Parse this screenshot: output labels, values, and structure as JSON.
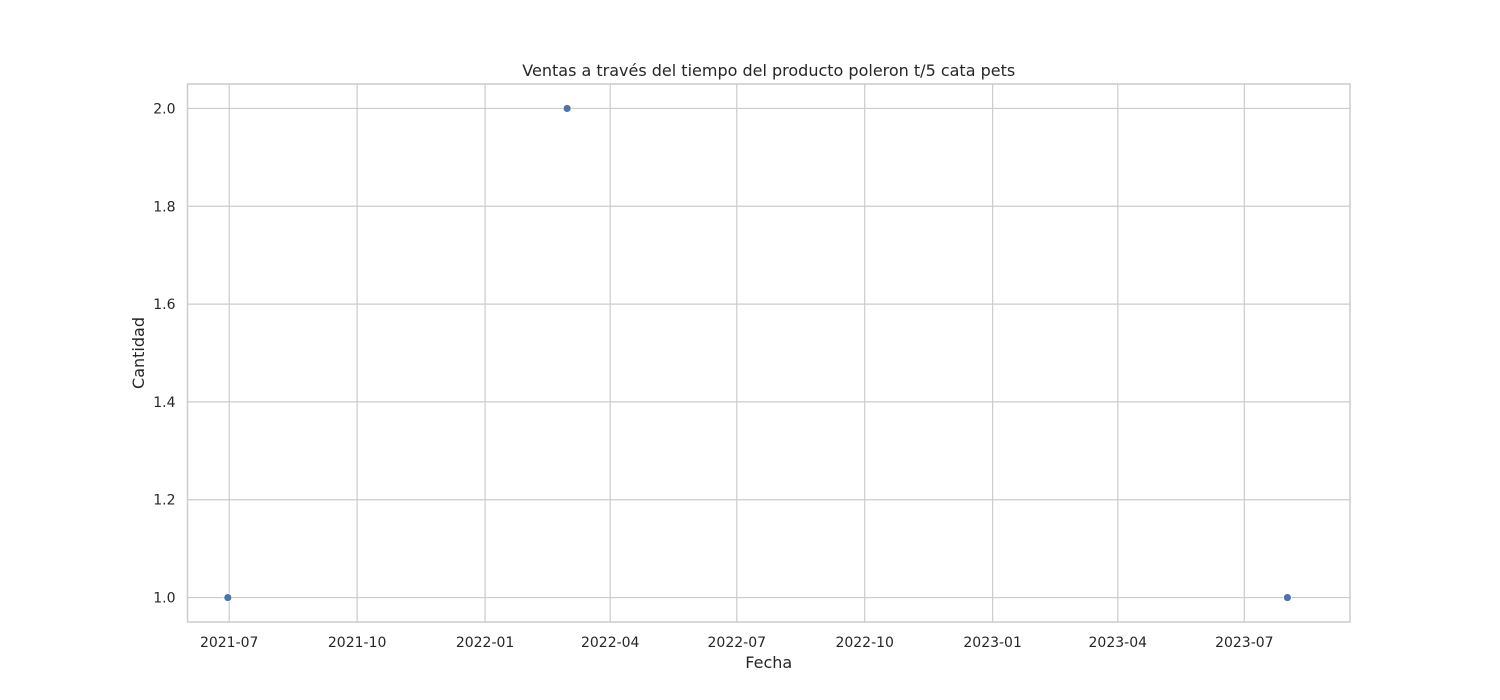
{
  "chart_data": {
    "type": "scatter",
    "title": "Ventas a través del tiempo del producto poleron t/5 cata pets",
    "xlabel": "Fecha",
    "ylabel": "Cantidad",
    "x_scale": "time",
    "xlim": [
      "2021-06-01",
      "2023-09-15"
    ],
    "ylim": [
      0.95,
      2.05
    ],
    "x_ticks": [
      "2021-07",
      "2021-10",
      "2022-01",
      "2022-04",
      "2022-07",
      "2022-10",
      "2023-01",
      "2023-04",
      "2023-07"
    ],
    "y_ticks": [
      "1.0",
      "1.2",
      "1.4",
      "1.6",
      "1.8",
      "2.0"
    ],
    "grid": true,
    "legend": "none",
    "marker_color": "#4c72b0",
    "series": [
      {
        "points": [
          {
            "x": "2021-06-30",
            "y": 1
          },
          {
            "x": "2022-03-01",
            "y": 2
          },
          {
            "x": "2023-08-01",
            "y": 1
          }
        ]
      }
    ]
  }
}
